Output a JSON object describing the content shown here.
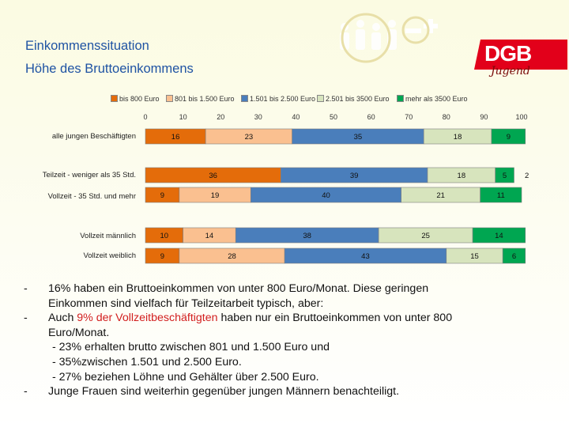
{
  "header": {
    "title_line1": "Einkommenssituation",
    "title_line2": "Höhe des Bruttoeinkommens",
    "logo_text": "DGB",
    "logo_sub": "Jugend"
  },
  "chart_data": {
    "type": "bar",
    "orientation": "horizontal",
    "stacked": true,
    "xlim": [
      0,
      100
    ],
    "x_ticks": [
      0,
      10,
      20,
      30,
      40,
      50,
      60,
      70,
      80,
      90,
      100
    ],
    "legend_position": "top",
    "categories": [
      "alle jungen Beschäftigten",
      "Teilzeit - weniger als 35 Std.",
      "Vollzeit - 35 Std. und mehr",
      "Vollzeit männlich",
      "Vollzeit weiblich"
    ],
    "series": [
      {
        "name": "bis 800 Euro",
        "color": "#e46c0a",
        "values": [
          16,
          36,
          9,
          10,
          9
        ]
      },
      {
        "name": "801 bis 1.500 Euro",
        "color": "#fac090",
        "values": [
          23,
          0,
          19,
          14,
          28
        ]
      },
      {
        "name": "1.501 bis 2.500 Euro",
        "color": "#4a7ebb",
        "values": [
          35,
          39,
          40,
          38,
          43
        ]
      },
      {
        "name": "2.501 bis 3500 Euro",
        "color": "#d7e4bd",
        "values": [
          18,
          18,
          21,
          25,
          15
        ]
      },
      {
        "name": "mehr als 3500 Euro",
        "color": "#00a651",
        "values": [
          9,
          5,
          11,
          14,
          6
        ]
      }
    ],
    "extra_labels": [
      {
        "category_index": 1,
        "text": "2"
      }
    ]
  },
  "bullets": [
    {
      "dash": "-",
      "lines": [
        "16% haben ein Bruttoeinkommen von unter 800 Euro/Monat. Diese geringen",
        "Einkommen sind vielfach für Teilzeitarbeit typisch, aber:"
      ]
    },
    {
      "dash": "-",
      "prefix": "Auch ",
      "highlight": "9% der Vollzeitbeschäftigten",
      "suffix_line1": " haben nur ein Bruttoeinkommen von unter 800",
      "line2": "Euro/Monat."
    },
    {
      "dash": "",
      "sub": "-  23% erhalten brutto zwischen 801 und 1.500 Euro und"
    },
    {
      "dash": "",
      "sub": "-  35%zwischen 1.501 und 2.500 Euro."
    },
    {
      "dash": "",
      "sub": "-  27% beziehen Löhne und Gehälter über 2.500 Euro."
    },
    {
      "dash": "-",
      "lines": [
        "Junge Frauen sind weiterhin gegenüber jungen Männern benachteiligt."
      ]
    }
  ]
}
